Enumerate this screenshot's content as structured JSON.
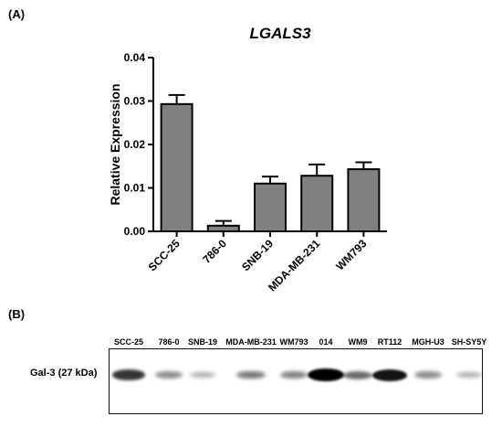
{
  "panel_a_label": "(A)",
  "panel_b_label": "(B)",
  "chart_data": {
    "type": "bar",
    "title": "LGALS3",
    "xlabel": "",
    "ylabel": "Relative Expression",
    "ylim": [
      0,
      0.04
    ],
    "y_ticks": [
      "0.00",
      "0.01",
      "0.02",
      "0.03",
      "0.04"
    ],
    "categories": [
      "SCC-25",
      "786-0",
      "SNB-19",
      "MDA-MB-231",
      "WM793"
    ],
    "values": [
      0.0293,
      0.0013,
      0.011,
      0.0128,
      0.0143
    ],
    "errors": [
      0.0021,
      0.0011,
      0.0016,
      0.0026,
      0.0016
    ],
    "bar_color": "#808080",
    "grid": false,
    "legend": "none"
  },
  "western_blot": {
    "protein_label": "Gal-3 (27 kDa)",
    "lanes": [
      {
        "label": "SCC-25",
        "intensity": 0.75
      },
      {
        "label": "786-0",
        "intensity": 0.35
      },
      {
        "label": "SNB-19",
        "intensity": 0.2
      },
      {
        "label": "MDA-MB-231",
        "intensity": 0.45
      },
      {
        "label": "WM793",
        "intensity": 0.4
      },
      {
        "label": "014",
        "intensity": 1.0
      },
      {
        "label": "WM9",
        "intensity": 0.5
      },
      {
        "label": "RT112",
        "intensity": 0.9
      },
      {
        "label": "MGH-U3",
        "intensity": 0.35
      },
      {
        "label": "SH-SY5Y",
        "intensity": 0.2
      }
    ],
    "band_color": "#000000"
  }
}
